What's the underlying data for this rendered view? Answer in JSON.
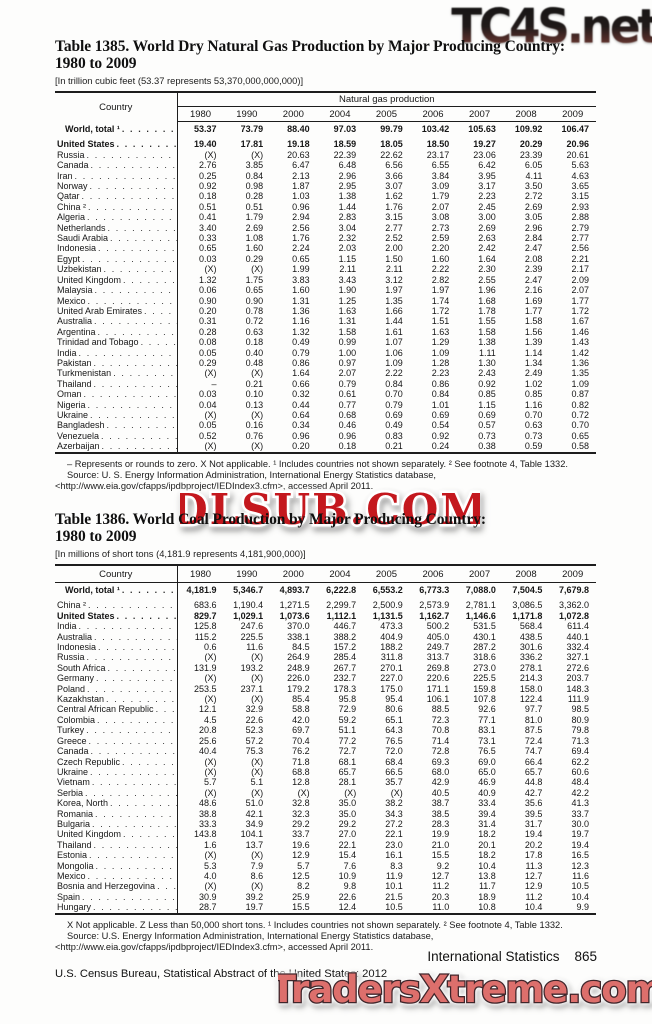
{
  "watermarks": {
    "top": "TC4S.net",
    "middle": "DLSUB.COM",
    "bottom": "TradersXtreme.com"
  },
  "footer": {
    "section": "International Statistics",
    "page_number": "865",
    "census_line": "U.S. Census Bureau, Statistical Abstract of the United States: 2012"
  },
  "table1385": {
    "title_line1": "Table 1385. World Dry Natural Gas Production by Major Producing Country:",
    "title_line2": "1980 to 2009",
    "unit_note": "[In trillion cubic feet (53.37 represents 53,370,000,000,000)]",
    "country_header": "Country",
    "span_header": "Natural gas production",
    "years": [
      "1980",
      "1990",
      "2000",
      "2004",
      "2005",
      "2006",
      "2007",
      "2008",
      "2009"
    ],
    "world_row": {
      "country": "World, total ¹",
      "values": [
        "53.37",
        "73.79",
        "88.40",
        "97.03",
        "99.79",
        "103.42",
        "105.63",
        "109.92",
        "106.47"
      ]
    },
    "rows": [
      {
        "country": "United States",
        "bold": true,
        "values": [
          "19.40",
          "17.81",
          "19.18",
          "18.59",
          "18.05",
          "18.50",
          "19.27",
          "20.29",
          "20.96"
        ]
      },
      {
        "country": "Russia",
        "values": [
          "(X)",
          "(X)",
          "20.63",
          "22.39",
          "22.62",
          "23.17",
          "23.06",
          "23.39",
          "20.61"
        ]
      },
      {
        "country": "Canada",
        "values": [
          "2.76",
          "3.85",
          "6.47",
          "6.48",
          "6.56",
          "6.55",
          "6.42",
          "6.05",
          "5.63"
        ]
      },
      {
        "country": "Iran",
        "values": [
          "0.25",
          "0.84",
          "2.13",
          "2.96",
          "3.66",
          "3.84",
          "3.95",
          "4.11",
          "4.63"
        ]
      },
      {
        "country": "Norway",
        "values": [
          "0.92",
          "0.98",
          "1.87",
          "2.95",
          "3.07",
          "3.09",
          "3.17",
          "3.50",
          "3.65"
        ]
      },
      {
        "country": "Qatar",
        "values": [
          "0.18",
          "0.28",
          "1.03",
          "1.38",
          "1.62",
          "1.79",
          "2.23",
          "2.72",
          "3.15"
        ]
      },
      {
        "country": "China ²",
        "values": [
          "0.51",
          "0.51",
          "0.96",
          "1.44",
          "1.76",
          "2.07",
          "2.45",
          "2.69",
          "2.93"
        ]
      },
      {
        "country": "Algeria",
        "values": [
          "0.41",
          "1.79",
          "2.94",
          "2.83",
          "3.15",
          "3.08",
          "3.00",
          "3.05",
          "2.88"
        ]
      },
      {
        "country": "Netherlands",
        "values": [
          "3.40",
          "2.69",
          "2.56",
          "3.04",
          "2.77",
          "2.73",
          "2.69",
          "2.96",
          "2.79"
        ]
      },
      {
        "country": "Saudi Arabia",
        "values": [
          "0.33",
          "1.08",
          "1.76",
          "2.32",
          "2.52",
          "2.59",
          "2.63",
          "2.84",
          "2.77"
        ]
      },
      {
        "country": "Indonesia",
        "values": [
          "0.65",
          "1.60",
          "2.24",
          "2.03",
          "2.00",
          "2.20",
          "2.42",
          "2.47",
          "2.56"
        ]
      },
      {
        "country": "Egypt",
        "values": [
          "0.03",
          "0.29",
          "0.65",
          "1.15",
          "1.50",
          "1.60",
          "1.64",
          "2.08",
          "2.21"
        ]
      },
      {
        "country": "Uzbekistan",
        "values": [
          "(X)",
          "(X)",
          "1.99",
          "2.11",
          "2.11",
          "2.22",
          "2.30",
          "2.39",
          "2.17"
        ]
      },
      {
        "country": "United Kingdom",
        "values": [
          "1.32",
          "1.75",
          "3.83",
          "3.43",
          "3.12",
          "2.82",
          "2.55",
          "2.47",
          "2.09"
        ]
      },
      {
        "country": "Malaysia",
        "values": [
          "0.06",
          "0.65",
          "1.60",
          "1.90",
          "1.97",
          "1.97",
          "1.96",
          "2.16",
          "2.07"
        ]
      },
      {
        "country": "Mexico",
        "values": [
          "0.90",
          "0.90",
          "1.31",
          "1.25",
          "1.35",
          "1.74",
          "1.68",
          "1.69",
          "1.77"
        ]
      },
      {
        "country": "United Arab Emirates",
        "values": [
          "0.20",
          "0.78",
          "1.36",
          "1.63",
          "1.66",
          "1.72",
          "1.78",
          "1.77",
          "1.72"
        ]
      },
      {
        "country": "Australia",
        "values": [
          "0.31",
          "0.72",
          "1.16",
          "1.31",
          "1.44",
          "1.51",
          "1.55",
          "1.58",
          "1.67"
        ]
      },
      {
        "country": "Argentina",
        "values": [
          "0.28",
          "0.63",
          "1.32",
          "1.58",
          "1.61",
          "1.63",
          "1.58",
          "1.56",
          "1.46"
        ]
      },
      {
        "country": "Trinidad and Tobago",
        "values": [
          "0.08",
          "0.18",
          "0.49",
          "0.99",
          "1.07",
          "1.29",
          "1.38",
          "1.39",
          "1.43"
        ]
      },
      {
        "country": "India",
        "values": [
          "0.05",
          "0.40",
          "0.79",
          "1.00",
          "1.06",
          "1.09",
          "1.11",
          "1.14",
          "1.42"
        ]
      },
      {
        "country": "Pakistan",
        "values": [
          "0.29",
          "0.48",
          "0.86",
          "0.97",
          "1.09",
          "1.28",
          "1.30",
          "1.34",
          "1.36"
        ]
      },
      {
        "country": "Turkmenistan",
        "values": [
          "(X)",
          "(X)",
          "1.64",
          "2.07",
          "2.22",
          "2.23",
          "2.43",
          "2.49",
          "1.35"
        ]
      },
      {
        "country": "Thailand",
        "values": [
          "–",
          "0.21",
          "0.66",
          "0.79",
          "0.84",
          "0.86",
          "0.92",
          "1.02",
          "1.09"
        ]
      },
      {
        "country": "Oman",
        "values": [
          "0.03",
          "0.10",
          "0.32",
          "0.61",
          "0.70",
          "0.84",
          "0.85",
          "0.85",
          "0.87"
        ]
      },
      {
        "country": "Nigeria",
        "values": [
          "0.04",
          "0.13",
          "0.44",
          "0.77",
          "0.79",
          "1.01",
          "1.15",
          "1.16",
          "0.82"
        ]
      },
      {
        "country": "Ukraine",
        "values": [
          "(X)",
          "(X)",
          "0.64",
          "0.68",
          "0.69",
          "0.69",
          "0.69",
          "0.70",
          "0.72"
        ]
      },
      {
        "country": "Bangladesh",
        "values": [
          "0.05",
          "0.16",
          "0.34",
          "0.46",
          "0.49",
          "0.54",
          "0.57",
          "0.63",
          "0.70"
        ]
      },
      {
        "country": "Venezuela",
        "values": [
          "0.52",
          "0.76",
          "0.96",
          "0.96",
          "0.83",
          "0.92",
          "0.73",
          "0.73",
          "0.65"
        ]
      },
      {
        "country": "Azerbaijan",
        "values": [
          "(X)",
          "(X)",
          "0.20",
          "0.18",
          "0.21",
          "0.24",
          "0.38",
          "0.59",
          "0.58"
        ]
      }
    ],
    "footnotes": [
      "– Represents or rounds to zero. X Not applicable. ¹ Includes countries not shown separately. ² See footnote 4, Table 1332.",
      "Source: U. S. Energy Information Administration, International Energy Statistics database, <http://www.eia.gov/cfapps/ipdbproject/IEDIndex3.cfm>, accessed April 2011."
    ]
  },
  "table1386": {
    "title_line1": "Table 1386. World Coal Production by Major Producing Country:",
    "title_line2": "1980 to 2009",
    "unit_note": "[In millions of short tons (4,181.9 represents 4,181,900,000)]",
    "country_header": "Country",
    "years": [
      "1980",
      "1990",
      "2000",
      "2004",
      "2005",
      "2006",
      "2007",
      "2008",
      "2009"
    ],
    "world_row": {
      "country": "World, total ¹",
      "values": [
        "4,181.9",
        "5,346.7",
        "4,893.7",
        "6,222.8",
        "6,553.2",
        "6,773.3",
        "7,088.0",
        "7,504.5",
        "7,679.8"
      ]
    },
    "rows": [
      {
        "country": "China ²",
        "values": [
          "683.6",
          "1,190.4",
          "1,271.5",
          "2,299.7",
          "2,500.9",
          "2,573.9",
          "2,781.1",
          "3,086.5",
          "3,362.0"
        ]
      },
      {
        "country": "United States",
        "bold": true,
        "values": [
          "829.7",
          "1,029.1",
          "1,073.6",
          "1,112.1",
          "1,131.5",
          "1,162.7",
          "1,146.6",
          "1,171.8",
          "1,072.8"
        ]
      },
      {
        "country": "India",
        "values": [
          "125.8",
          "247.6",
          "370.0",
          "446.7",
          "473.3",
          "500.2",
          "531.5",
          "568.4",
          "611.4"
        ]
      },
      {
        "country": "Australia",
        "values": [
          "115.2",
          "225.5",
          "338.1",
          "388.2",
          "404.9",
          "405.0",
          "430.1",
          "438.5",
          "440.1"
        ]
      },
      {
        "country": "Indonesia",
        "values": [
          "0.6",
          "11.6",
          "84.5",
          "157.2",
          "188.2",
          "249.7",
          "287.2",
          "301.6",
          "332.4"
        ]
      },
      {
        "country": "Russia",
        "values": [
          "(X)",
          "(X)",
          "264.9",
          "285.4",
          "311.8",
          "313.7",
          "318.6",
          "336.2",
          "327.1"
        ]
      },
      {
        "country": "South Africa",
        "values": [
          "131.9",
          "193.2",
          "248.9",
          "267.7",
          "270.1",
          "269.8",
          "273.0",
          "278.1",
          "272.6"
        ]
      },
      {
        "country": "Germany",
        "values": [
          "(X)",
          "(X)",
          "226.0",
          "232.7",
          "227.0",
          "220.6",
          "225.5",
          "214.3",
          "203.7"
        ]
      },
      {
        "country": "Poland",
        "values": [
          "253.5",
          "237.1",
          "179.2",
          "178.3",
          "175.0",
          "171.1",
          "159.8",
          "158.0",
          "148.3"
        ]
      },
      {
        "country": "Kazakhstan",
        "values": [
          "(X)",
          "(X)",
          "85.4",
          "95.8",
          "95.4",
          "106.1",
          "107.8",
          "122.4",
          "111.9"
        ]
      },
      {
        "country": "Central African Republic",
        "values": [
          "12.1",
          "32.9",
          "58.8",
          "72.9",
          "80.6",
          "88.5",
          "92.6",
          "97.7",
          "98.5"
        ]
      },
      {
        "country": "Colombia",
        "values": [
          "4.5",
          "22.6",
          "42.0",
          "59.2",
          "65.1",
          "72.3",
          "77.1",
          "81.0",
          "80.9"
        ]
      },
      {
        "country": "Turkey",
        "values": [
          "20.8",
          "52.3",
          "69.7",
          "51.1",
          "64.3",
          "70.8",
          "83.1",
          "87.5",
          "79.8"
        ]
      },
      {
        "country": "Greece",
        "values": [
          "25.6",
          "57.2",
          "70.4",
          "77.2",
          "76.5",
          "71.4",
          "73.1",
          "72.4",
          "71.3"
        ]
      },
      {
        "country": "Canada",
        "values": [
          "40.4",
          "75.3",
          "76.2",
          "72.7",
          "72.0",
          "72.8",
          "76.5",
          "74.7",
          "69.4"
        ]
      },
      {
        "country": "Czech Republic",
        "values": [
          "(X)",
          "(X)",
          "71.8",
          "68.1",
          "68.4",
          "69.3",
          "69.0",
          "66.4",
          "62.2"
        ]
      },
      {
        "country": "Ukraine",
        "values": [
          "(X)",
          "(X)",
          "68.8",
          "65.7",
          "66.5",
          "68.0",
          "65.0",
          "65.7",
          "60.6"
        ]
      },
      {
        "country": "Vietnam",
        "values": [
          "5.7",
          "5.1",
          "12.8",
          "28.1",
          "35.7",
          "42.9",
          "46.9",
          "44.8",
          "48.4"
        ]
      },
      {
        "country": "Serbia",
        "values": [
          "(X)",
          "(X)",
          "(X)",
          "(X)",
          "(X)",
          "40.5",
          "40.9",
          "42.7",
          "42.2"
        ]
      },
      {
        "country": "Korea, North",
        "values": [
          "48.6",
          "51.0",
          "32.8",
          "35.0",
          "38.2",
          "38.7",
          "33.4",
          "35.6",
          "41.3"
        ]
      },
      {
        "country": "Romania",
        "values": [
          "38.8",
          "42.1",
          "32.3",
          "35.0",
          "34.3",
          "38.5",
          "39.4",
          "39.5",
          "33.7"
        ]
      },
      {
        "country": "Bulgaria",
        "values": [
          "33.3",
          "34.9",
          "29.2",
          "29.2",
          "27.2",
          "28.3",
          "31.4",
          "31.7",
          "30.0"
        ]
      },
      {
        "country": "United Kingdom",
        "values": [
          "143.8",
          "104.1",
          "33.7",
          "27.0",
          "22.1",
          "19.9",
          "18.2",
          "19.4",
          "19.7"
        ]
      },
      {
        "country": "Thailand",
        "values": [
          "1.6",
          "13.7",
          "19.6",
          "22.1",
          "23.0",
          "21.0",
          "20.1",
          "20.2",
          "19.4"
        ]
      },
      {
        "country": "Estonia",
        "values": [
          "(X)",
          "(X)",
          "12.9",
          "15.4",
          "16.1",
          "15.5",
          "18.2",
          "17.8",
          "16.5"
        ]
      },
      {
        "country": "Mongolia",
        "values": [
          "5.3",
          "7.9",
          "5.7",
          "7.6",
          "8.3",
          "9.2",
          "10.4",
          "11.3",
          "12.3"
        ]
      },
      {
        "country": "Mexico",
        "values": [
          "4.0",
          "8.6",
          "12.5",
          "10.9",
          "11.9",
          "12.7",
          "13.8",
          "12.7",
          "11.6"
        ]
      },
      {
        "country": "Bosnia and Herzegovina",
        "values": [
          "(X)",
          "(X)",
          "8.2",
          "9.8",
          "10.1",
          "11.2",
          "11.7",
          "12.9",
          "10.5"
        ]
      },
      {
        "country": "Spain",
        "values": [
          "30.9",
          "39.2",
          "25.9",
          "22.6",
          "21.5",
          "20.3",
          "18.9",
          "11.2",
          "10.4"
        ]
      },
      {
        "country": "Hungary",
        "values": [
          "28.7",
          "19.7",
          "15.5",
          "12.4",
          "10.5",
          "11.0",
          "10.8",
          "10.4",
          "9.9"
        ]
      }
    ],
    "footnotes": [
      "X Not applicable. Z Less than 50,000 short tons. ¹ Includes countries not shown separately. ² See footnote 4, Table 1332.",
      "Source: U.S. Energy Information Administration, International Energy Statistics database, <http://www.eia.gov/cfapps/ipdbproject/IEDIndex3.cfm>, accessed April 2011."
    ]
  }
}
